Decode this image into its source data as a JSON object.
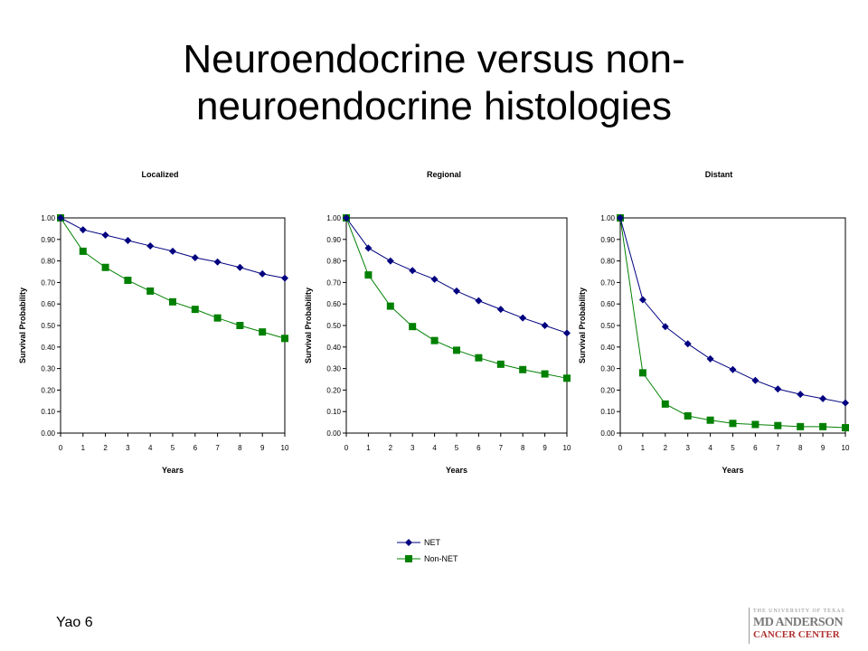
{
  "slide": {
    "title_line1": "Neuroendocrine versus non-",
    "title_line2": "neuroendocrine histologies",
    "footer": "Yao 6"
  },
  "logo": {
    "small": "THE UNIVERSITY OF TEXAS",
    "big": "MD ANDERSON",
    "sub": "CANCER CENTER"
  },
  "colors": {
    "NET": "#000080",
    "Non-NET": "#008000"
  },
  "chart_data": [
    {
      "type": "line",
      "title": "Localized",
      "xlabel": "Years",
      "ylabel": "Survival Probability",
      "x": [
        0,
        1,
        2,
        3,
        4,
        5,
        6,
        7,
        8,
        9,
        10
      ],
      "xlim": [
        0,
        10
      ],
      "ylim": [
        0,
        1
      ],
      "yticks": [
        "0.00",
        "0.10",
        "0.20",
        "0.30",
        "0.40",
        "0.50",
        "0.60",
        "0.70",
        "0.80",
        "0.90",
        "1.00"
      ],
      "series": [
        {
          "name": "NET",
          "marker": "diamond",
          "values": [
            1.0,
            0.945,
            0.92,
            0.895,
            0.87,
            0.845,
            0.815,
            0.795,
            0.77,
            0.74,
            0.72
          ]
        },
        {
          "name": "Non-NET",
          "marker": "square",
          "values": [
            1.0,
            0.845,
            0.77,
            0.71,
            0.66,
            0.61,
            0.575,
            0.535,
            0.5,
            0.47,
            0.44
          ]
        }
      ]
    },
    {
      "type": "line",
      "title": "Regional",
      "xlabel": "Years",
      "ylabel": "Survival Probability",
      "x": [
        0,
        1,
        2,
        3,
        4,
        5,
        6,
        7,
        8,
        9,
        10
      ],
      "xlim": [
        0,
        10
      ],
      "ylim": [
        0,
        1
      ],
      "yticks": [
        "0.00",
        "0.10",
        "0.20",
        "0.30",
        "0.40",
        "0.50",
        "0.60",
        "0.70",
        "0.80",
        "0.90",
        "1.00"
      ],
      "series": [
        {
          "name": "NET",
          "marker": "diamond",
          "values": [
            1.0,
            0.86,
            0.8,
            0.755,
            0.715,
            0.66,
            0.615,
            0.575,
            0.535,
            0.5,
            0.465
          ]
        },
        {
          "name": "Non-NET",
          "marker": "square",
          "values": [
            1.0,
            0.735,
            0.59,
            0.495,
            0.43,
            0.385,
            0.35,
            0.32,
            0.295,
            0.275,
            0.255
          ]
        }
      ]
    },
    {
      "type": "line",
      "title": "Distant",
      "xlabel": "Years",
      "ylabel": "Survival Probability",
      "x": [
        0,
        1,
        2,
        3,
        4,
        5,
        6,
        7,
        8,
        9,
        10
      ],
      "xlim": [
        0,
        10
      ],
      "ylim": [
        0,
        1
      ],
      "yticks": [
        "0.00",
        "0.10",
        "0.20",
        "0.30",
        "0.40",
        "0.50",
        "0.60",
        "0.70",
        "0.80",
        "0.90",
        "1.00"
      ],
      "series": [
        {
          "name": "NET",
          "marker": "diamond",
          "values": [
            1.0,
            0.62,
            0.495,
            0.415,
            0.345,
            0.295,
            0.245,
            0.205,
            0.18,
            0.16,
            0.14
          ]
        },
        {
          "name": "Non-NET",
          "marker": "square",
          "values": [
            1.0,
            0.28,
            0.135,
            0.08,
            0.06,
            0.045,
            0.04,
            0.035,
            0.03,
            0.03,
            0.025
          ]
        }
      ]
    }
  ],
  "legend": {
    "items": [
      "NET",
      "Non-NET"
    ]
  }
}
